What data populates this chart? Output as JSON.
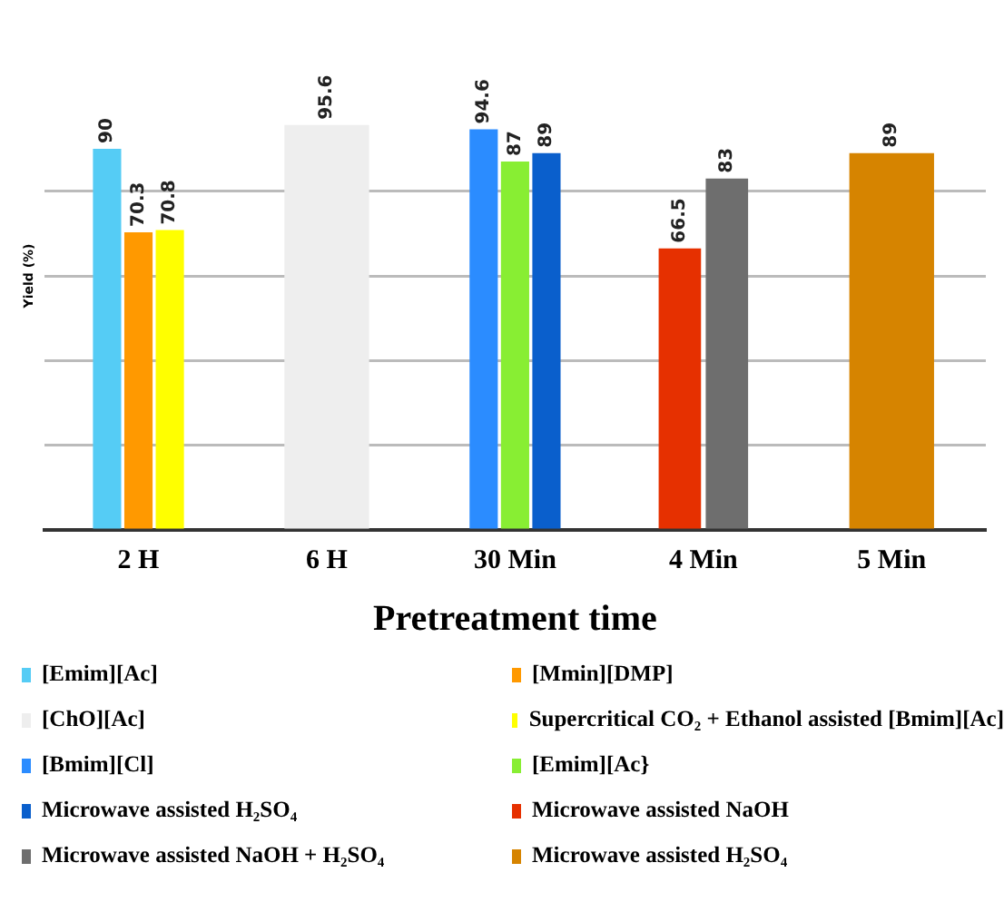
{
  "chart_data": {
    "type": "bar",
    "xlabel": "Pretreatment time",
    "ylabel": "Yield (%)",
    "categories": [
      "2 H",
      "6 H",
      "30 Min",
      "4 Min",
      "5 Min"
    ],
    "series": [
      {
        "name": "[Emim][Ac]",
        "color": "#55ccf5",
        "values": [
          90,
          null,
          null,
          null,
          null
        ]
      },
      {
        "name": "[Mmin][DMP]",
        "color": "#ff9900",
        "values": [
          70.3,
          null,
          null,
          null,
          null
        ]
      },
      {
        "name": "[ChO][Ac]",
        "color": "#eeeeee",
        "values": [
          null,
          95.6,
          null,
          null,
          null
        ]
      },
      {
        "name": "Supercritical CO₂ + Ethanol assisted [Bmim][Ac]",
        "color": "#ffff00",
        "values": [
          70.8,
          null,
          null,
          null,
          null
        ]
      },
      {
        "name": "[Bmim][Cl]",
        "color": "#2b8cff",
        "values": [
          null,
          null,
          94.6,
          null,
          null
        ]
      },
      {
        "name": "[Emim][Ac}",
        "color": "#88ee33",
        "values": [
          null,
          null,
          87,
          null,
          null
        ]
      },
      {
        "name": "Microwave assisted H₂SO₄",
        "color": "#0a5fcc",
        "values": [
          null,
          null,
          89,
          null,
          null
        ]
      },
      {
        "name": "Microwave assisted NaOH",
        "color": "#e63000",
        "values": [
          null,
          null,
          null,
          66.5,
          null
        ]
      },
      {
        "name": "Microwave assisted NaOH + H₂SO₄",
        "color": "#6e6e6e",
        "values": [
          null,
          null,
          null,
          83,
          null
        ]
      },
      {
        "name": "Microwave assisted H₂SO₄",
        "color": "#d68400",
        "values": [
          null,
          null,
          null,
          null,
          89
        ]
      }
    ],
    "yticks": [
      {
        "value": 0,
        "label": null
      },
      {
        "value": 20,
        "label": null
      },
      {
        "value": 40,
        "label": null
      },
      {
        "value": 60,
        "label": null
      },
      {
        "value": 80,
        "label": null
      }
    ],
    "tick_labels": "x",
    "grid": "y",
    "data_labels": true,
    "legend": "bottom"
  }
}
